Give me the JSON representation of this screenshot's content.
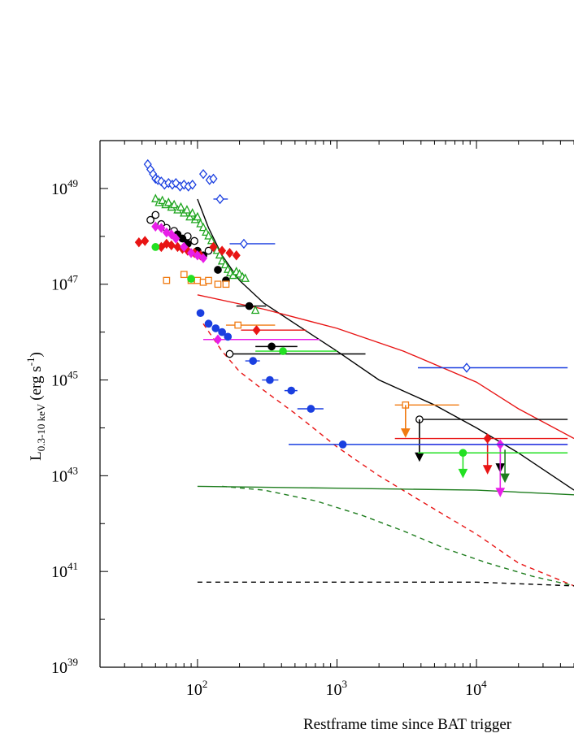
{
  "chart_data": {
    "type": "scatter",
    "title": "",
    "xlabel": "Restframe time since BAT trigger",
    "ylabel": {
      "main": "L",
      "subscript": "0.3-10 keV",
      "unit_open": "(erg s",
      "unit_exp": "-1",
      "unit_close": ")"
    },
    "x_scale": "log",
    "y_scale": "log",
    "xlim": [
      20,
      50000
    ],
    "ylim": [
      1e+39,
      1e+50
    ],
    "x_ticks": [
      {
        "value": 100,
        "base": "10",
        "exp": "2"
      },
      {
        "value": 1000,
        "base": "10",
        "exp": "3"
      },
      {
        "value": 10000,
        "base": "10",
        "exp": "4"
      }
    ],
    "y_ticks": [
      {
        "value": 1e+39,
        "base": "10",
        "exp": "39"
      },
      {
        "value": 1e+41,
        "base": "10",
        "exp": "41"
      },
      {
        "value": 1e+43,
        "base": "10",
        "exp": "43"
      },
      {
        "value": 1e+45,
        "base": "10",
        "exp": "45"
      },
      {
        "value": 1e+47,
        "base": "10",
        "exp": "47"
      },
      {
        "value": 1e+49,
        "base": "10",
        "exp": "49"
      }
    ],
    "grid": false,
    "legend": "none",
    "colors": {
      "blue": "#1a3fe0",
      "green": "#1ea51e",
      "black": "#000000",
      "red": "#e81414",
      "orange": "#f07a10",
      "magenta": "#e81ee8",
      "brightgreen": "#22e022",
      "darkgreen": "#1e7d1e"
    },
    "series": [
      {
        "color": "blue",
        "marker": "diamond-open",
        "points": [
          [
            44,
            3.2e+49
          ],
          [
            46,
            2.5e+49
          ],
          [
            48,
            2e+49
          ],
          [
            50,
            1.6e+49
          ],
          [
            52,
            1.5e+49
          ],
          [
            55,
            1.4e+49
          ],
          [
            58,
            1.2e+49
          ],
          [
            62,
            1.3e+49
          ],
          [
            66,
            1.2e+49
          ],
          [
            70,
            1.3e+49
          ],
          [
            75,
            1.1e+49
          ],
          [
            80,
            1.2e+49
          ],
          [
            86,
            1.1e+49
          ],
          [
            92,
            1.2e+49
          ],
          [
            110,
            2e+49
          ],
          [
            122,
            1.5e+49
          ],
          [
            130,
            1.6e+49
          ]
        ],
        "xerr_points": [
          [
            145,
            6e+48,
            130,
            165
          ],
          [
            215,
            7e+47,
            170,
            360
          ],
          [
            8500,
            1.8e+45,
            3800,
            45000
          ]
        ]
      },
      {
        "color": "green",
        "marker": "triangle-open",
        "points": [
          [
            50,
            6e+48
          ],
          [
            53,
            5e+48
          ],
          [
            56,
            5.5e+48
          ],
          [
            59,
            4.5e+48
          ],
          [
            62,
            5e+48
          ],
          [
            65,
            4e+48
          ],
          [
            68,
            4.5e+48
          ],
          [
            72,
            3.5e+48
          ],
          [
            76,
            4e+48
          ],
          [
            80,
            3e+48
          ],
          [
            84,
            3.5e+48
          ],
          [
            88,
            2.5e+48
          ],
          [
            92,
            3e+48
          ],
          [
            96,
            2.2e+48
          ],
          [
            100,
            2.5e+48
          ],
          [
            105,
            1.8e+48
          ],
          [
            110,
            1.5e+48
          ],
          [
            115,
            1.2e+48
          ],
          [
            120,
            1e+48
          ],
          [
            126,
            8e+47
          ],
          [
            132,
            6e+47
          ],
          [
            138,
            5e+47
          ],
          [
            144,
            4e+47
          ],
          [
            150,
            3e+47
          ],
          [
            158,
            2.5e+47
          ],
          [
            165,
            2e+47
          ],
          [
            172,
            1.7e+47
          ],
          [
            180,
            1.5e+47
          ],
          [
            190,
            1.8e+47
          ],
          [
            200,
            1.6e+47
          ],
          [
            210,
            1.4e+47
          ],
          [
            220,
            1.3e+47
          ],
          [
            260,
            2.8e+46
          ]
        ]
      },
      {
        "color": "black",
        "marker": "circle-open",
        "points": [
          [
            46,
            2.2e+48
          ],
          [
            50,
            2.8e+48
          ],
          [
            55,
            1.8e+48
          ],
          [
            60,
            1.5e+48
          ],
          [
            68,
            1.3e+48
          ],
          [
            85,
            1e+48
          ],
          [
            95,
            8e+47
          ],
          [
            120,
            5e+47
          ]
        ],
        "xerr_points": [
          [
            170,
            3.5e+45,
            170,
            1600
          ],
          [
            3900,
            1.5e+44,
            3900,
            45000
          ]
        ],
        "upper_limits": [
          [
            3900,
            1.5e+44,
            2.2e+43
          ]
        ]
      },
      {
        "color": "black",
        "marker": "circle-filled",
        "points": [
          [
            72,
            1.1e+48
          ],
          [
            78,
            9e+47
          ],
          [
            85,
            7e+47
          ],
          [
            100,
            5e+47
          ],
          [
            110,
            4e+47
          ],
          [
            140,
            2e+47
          ],
          [
            160,
            1.2e+47
          ]
        ],
        "xerr_points": [
          [
            235,
            3.5e+46,
            190,
            310
          ],
          [
            340,
            5e+45,
            260,
            520
          ]
        ],
        "upper_limits": [
          [
            14800,
            5.2e+43,
            1.3e+43
          ]
        ]
      },
      {
        "color": "red",
        "marker": "diamond-filled",
        "points": [
          [
            38,
            7.5e+47
          ],
          [
            42,
            8e+47
          ],
          [
            55,
            6e+47
          ],
          [
            60,
            7e+47
          ],
          [
            65,
            6.5e+47
          ],
          [
            72,
            6e+47
          ],
          [
            78,
            5.5e+47
          ],
          [
            85,
            5e+47
          ],
          [
            95,
            4.5e+47
          ],
          [
            105,
            4e+47
          ],
          [
            130,
            6e+47
          ],
          [
            150,
            5e+47
          ],
          [
            170,
            4.5e+47
          ],
          [
            190,
            4e+47
          ]
        ],
        "xerr_points": [
          [
            265,
            1.1e+46,
            205,
            600
          ],
          [
            12000,
            6e+43,
            2600,
            45000
          ]
        ],
        "upper_limits": [
          [
            12000,
            6e+43,
            1.2e+43
          ]
        ]
      },
      {
        "color": "magenta",
        "marker": "diamond-filled",
        "points": [
          [
            50,
            1.6e+48
          ],
          [
            55,
            1.5e+48
          ],
          [
            60,
            1.2e+48
          ],
          [
            65,
            1.1e+48
          ],
          [
            70,
            9e+47
          ],
          [
            80,
            6e+47
          ],
          [
            90,
            4.5e+47
          ],
          [
            100,
            4e+47
          ],
          [
            110,
            3.5e+47
          ]
        ],
        "xerr_points": [
          [
            140,
            7e+45,
            110,
            750
          ],
          [
            14800,
            4.5e+43,
            3800,
            45000
          ]
        ],
        "upper_limits": [
          [
            14800,
            4.5e+43,
            4e+42
          ]
        ]
      },
      {
        "color": "orange",
        "marker": "square-open",
        "points": [
          [
            60,
            1.2e+47
          ],
          [
            80,
            1.6e+47
          ],
          [
            90,
            1.2e+47
          ],
          [
            100,
            1.2e+47
          ],
          [
            110,
            1.1e+47
          ],
          [
            120,
            1.2e+47
          ],
          [
            140,
            1e+47
          ],
          [
            160,
            1e+47
          ]
        ],
        "xerr_points": [
          [
            195,
            1.4e+46,
            160,
            360
          ],
          [
            3100,
            3e+44,
            2600,
            7500
          ]
        ],
        "upper_limits": [
          [
            3100,
            3e+44,
            7e+43
          ]
        ]
      },
      {
        "color": "brightgreen",
        "marker": "circle-filled",
        "points": [
          [
            50,
            6e+47
          ],
          [
            90,
            1.3e+47
          ]
        ],
        "xerr_points": [
          [
            410,
            4e+45,
            260,
            1000
          ],
          [
            8000,
            3e+43,
            3800,
            45000
          ]
        ],
        "upper_limits": [
          [
            8000,
            3e+43,
            1e+43
          ]
        ]
      },
      {
        "color": "blue",
        "marker": "circle-filled",
        "points": [
          [
            105,
            2.5e+46
          ],
          [
            120,
            1.5e+46
          ],
          [
            135,
            1.2e+46
          ],
          [
            150,
            1e+46
          ],
          [
            165,
            8e+45
          ]
        ],
        "xerr_points": [
          [
            250,
            2.5e+45,
            220,
            280
          ],
          [
            330,
            1e+45,
            290,
            380
          ],
          [
            470,
            6e+44,
            420,
            520
          ],
          [
            650,
            2.5e+44,
            520,
            800
          ],
          [
            1100,
            4.5e+43,
            450,
            45000
          ]
        ]
      },
      {
        "color": "darkgreen",
        "marker": "triangle-filled",
        "points": [],
        "upper_limits": [
          [
            16000,
            3.5e+43,
            8e+42
          ]
        ]
      }
    ],
    "lines": [
      {
        "color": "black",
        "dash": "solid",
        "points": [
          [
            100,
            6e+48
          ],
          [
            120,
            1.5e+48
          ],
          [
            150,
            4e+47
          ],
          [
            200,
            1.2e+47
          ],
          [
            300,
            4e+46
          ],
          [
            500,
            1.5e+46
          ],
          [
            1000,
            4e+45
          ],
          [
            2000,
            1e+45
          ],
          [
            5000,
            3e+44
          ],
          [
            10000,
            1e+44
          ],
          [
            20000,
            3e+43
          ],
          [
            50000,
            5e+42
          ]
        ]
      },
      {
        "color": "red",
        "dash": "solid",
        "points": [
          [
            100,
            6e+46
          ],
          [
            300,
            3e+46
          ],
          [
            1000,
            1.2e+46
          ],
          [
            3000,
            4e+45
          ],
          [
            10000,
            9e+44
          ],
          [
            20000,
            2.5e+44
          ],
          [
            50000,
            6e+43
          ]
        ]
      },
      {
        "color": "red",
        "dash": "dashed",
        "points": [
          [
            110,
            1.5e+46
          ],
          [
            150,
            4e+45
          ],
          [
            200,
            1.5e+45
          ],
          [
            300,
            6e+44
          ],
          [
            500,
            2e+44
          ],
          [
            1000,
            4e+43
          ],
          [
            2000,
            1e+43
          ],
          [
            5000,
            2e+42
          ],
          [
            10000,
            6e+41
          ],
          [
            20000,
            1.5e+41
          ],
          [
            50000,
            5e+40
          ]
        ]
      },
      {
        "color": "darkgreen",
        "dash": "solid",
        "points": [
          [
            100,
            6e+42
          ],
          [
            1000,
            5.5e+42
          ],
          [
            10000,
            5e+42
          ],
          [
            50000,
            4e+42
          ]
        ]
      },
      {
        "color": "darkgreen",
        "dash": "dashed",
        "points": [
          [
            150,
            6e+42
          ],
          [
            300,
            5e+42
          ],
          [
            700,
            3e+42
          ],
          [
            1500,
            1.5e+42
          ],
          [
            3000,
            7e+41
          ],
          [
            6000,
            3e+41
          ],
          [
            12000,
            1.5e+41
          ],
          [
            25000,
            8e+40
          ],
          [
            50000,
            5e+40
          ]
        ]
      },
      {
        "color": "black",
        "dash": "dashed",
        "points": [
          [
            100,
            6e+40
          ],
          [
            10000,
            6e+40
          ],
          [
            50000,
            5e+40
          ]
        ]
      }
    ]
  }
}
